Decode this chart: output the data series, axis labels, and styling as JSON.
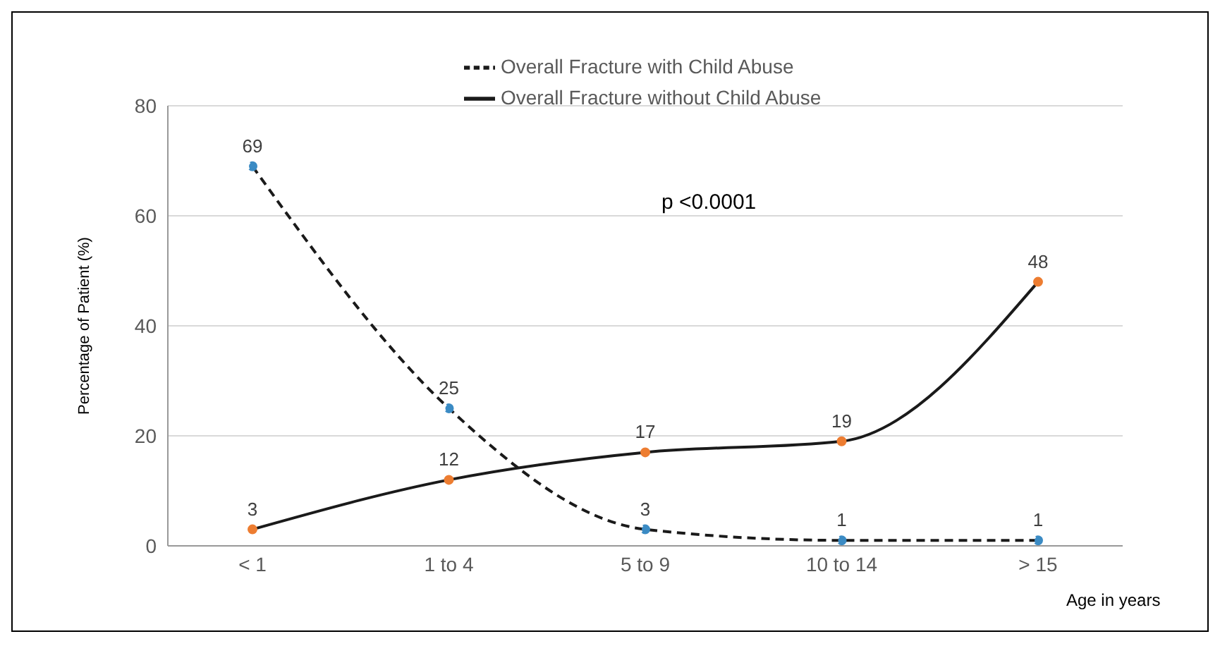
{
  "chart_data": {
    "type": "line",
    "categories": [
      "< 1",
      "1 to 4",
      "5 to 9",
      "10 to 14",
      "> 15"
    ],
    "series": [
      {
        "name": "Overall Fracture with Child Abuse",
        "color": "#1a1a1a",
        "line_style": "dashed",
        "values": [
          69,
          25,
          3,
          1,
          1
        ]
      },
      {
        "name": "Overall Fracture without Child Abuse",
        "color": "#1a1a1a",
        "line_style": "solid",
        "values": [
          3,
          12,
          17,
          19,
          48
        ]
      }
    ],
    "xlabel": "Age in years",
    "ylabel": "Percentage of Patient  (%)",
    "ylim": [
      0,
      80
    ],
    "yticks": [
      0,
      20,
      40,
      60,
      80
    ],
    "grid": "y",
    "legend": "top",
    "marker": "circle",
    "data_labels": true,
    "annotations": [
      "p <0.0001"
    ]
  }
}
